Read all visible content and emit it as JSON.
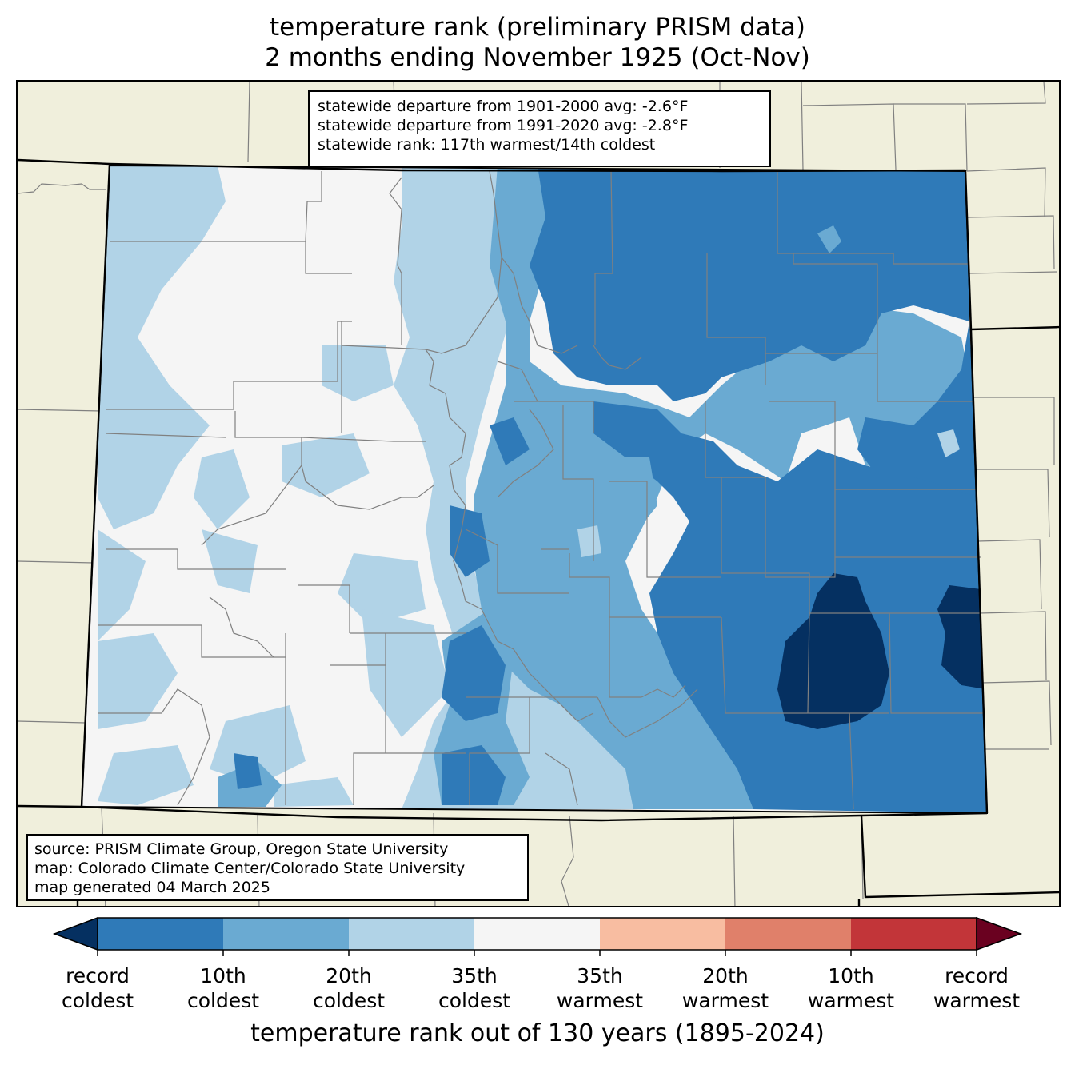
{
  "title": {
    "line1": "temperature rank (preliminary PRISM data)",
    "line2": "2 months ending November 1925 (Oct-Nov)"
  },
  "stats": {
    "line1": "statewide departure from 1901-2000 avg: -2.6°F",
    "line2": "statewide departure from 1991-2020 avg: -2.8°F",
    "line3": "statewide rank: 117th warmest/14th coldest"
  },
  "source": {
    "line1": "source: PRISM Climate Group, Oregon State University",
    "line2": "map: Colorado Climate Center/Colorado State University",
    "line3": "map generated 04 March 2025"
  },
  "colors": {
    "land_outside": "#f0efdc",
    "record_coldest": "#053061",
    "coldest_10": "#2f7ab8",
    "coldest_20": "#6aaad2",
    "coldest_35": "#b1d3e7",
    "near_normal": "#f5f5f5",
    "warmest_35": "#f8bda1",
    "warmest_20": "#e0806a",
    "warmest_10": "#c23539",
    "record_warmest": "#6a0120",
    "county_lines": "#808080"
  },
  "colorbar": {
    "title": "temperature rank out of 130 years (1895-2024)",
    "labels": [
      {
        "line1": "record",
        "line2": "coldest"
      },
      {
        "line1": "10th",
        "line2": "coldest"
      },
      {
        "line1": "20th",
        "line2": "coldest"
      },
      {
        "line1": "35th",
        "line2": "coldest"
      },
      {
        "line1": "35th",
        "line2": "warmest"
      },
      {
        "line1": "20th",
        "line2": "warmest"
      },
      {
        "line1": "10th",
        "line2": "warmest"
      },
      {
        "line1": "record",
        "line2": "warmest"
      }
    ]
  }
}
